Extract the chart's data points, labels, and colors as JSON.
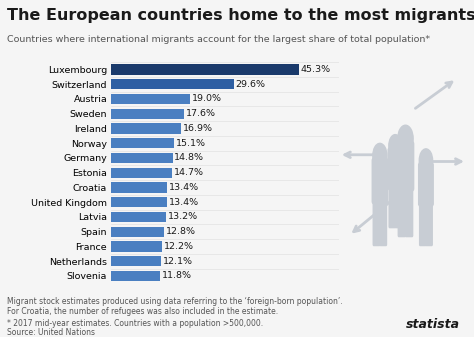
{
  "title": "The European countries home to the most migrants",
  "subtitle": "Countries where international migrants account for the largest share of total population*",
  "countries": [
    "Luxembourg",
    "Switzerland",
    "Austria",
    "Sweden",
    "Ireland",
    "Norway",
    "Germany",
    "Estonia",
    "Croatia",
    "United Kingdom",
    "Latvia",
    "Spain",
    "France",
    "Netherlands",
    "Slovenia"
  ],
  "values": [
    45.3,
    29.6,
    19.0,
    17.6,
    16.9,
    15.1,
    14.8,
    14.7,
    13.4,
    13.4,
    13.2,
    12.8,
    12.2,
    12.1,
    11.8
  ],
  "bar_color_top": "#1a3a6b",
  "bar_color_mid": "#2e5fa3",
  "bar_color_rest": "#4a7fc1",
  "background_color": "#f5f5f5",
  "footnote1": "Migrant stock estimates produced using data referring to the ‘foreign-born population’.",
  "footnote2": "For Croatia, the number of refugees was also included in the estimate.",
  "footnote3": "* 2017 mid-year estimates. Countries with a population >500,000.",
  "footnote4": "Source: United Nations",
  "title_fontsize": 11.5,
  "subtitle_fontsize": 6.8,
  "label_fontsize": 6.8,
  "value_fontsize": 6.8,
  "footnote_fontsize": 5.5,
  "text_color": "#1a1a1a",
  "footnote_color": "#555555"
}
